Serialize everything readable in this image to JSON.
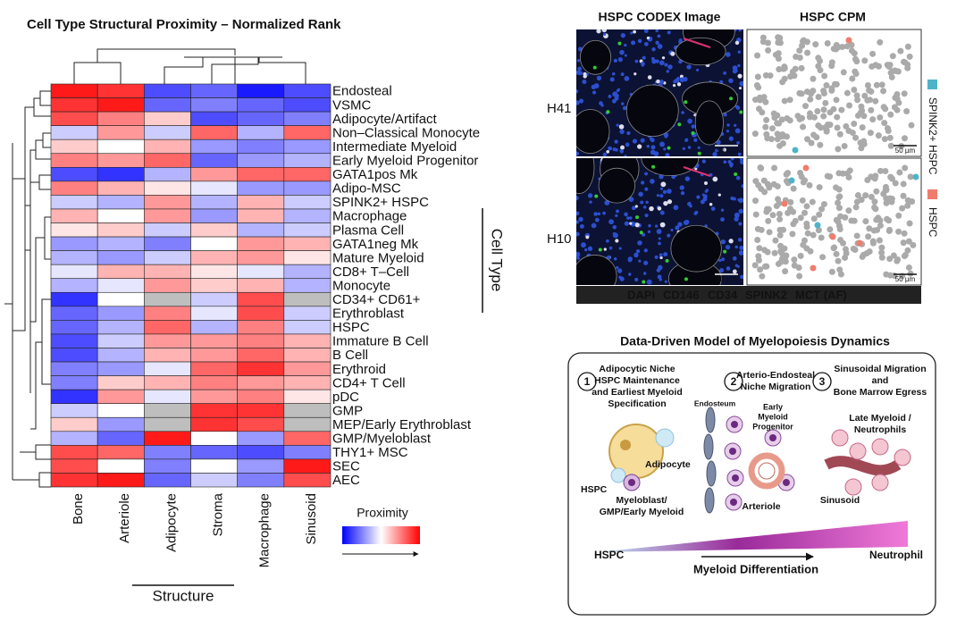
{
  "chart_data": {
    "type": "heatmap",
    "title": "Cell Type Structural Proximity – Normalized Rank",
    "columns": [
      "Bone",
      "Arteriole",
      "Adipocyte",
      "Stroma",
      "Macrophage",
      "Sinusoid"
    ],
    "rows": [
      "Endosteal",
      "VSMC",
      "Adipocyte/Artifact",
      "Non–Classical Monocyte",
      "Intermediate Myeloid",
      "Early Myeloid Progenitor",
      "GATA1pos Mk",
      "Adipo-MSC",
      "SPINK2+ HSPC",
      "Macrophage",
      "Plasma Cell",
      "GATA1neg Mk",
      "Mature Myeloid",
      "CD8+ T–Cell",
      "Monocyte",
      "CD34+ CD61+",
      "Erythroblast",
      "HSPC",
      "Immature B Cell",
      "B Cell",
      "Erythroid",
      "CD4+ T Cell",
      "pDC",
      "GMP",
      "MEP/Early Erythroblast",
      "GMP/Myeloblast",
      "THY1+ MSC",
      "SEC",
      "AEC"
    ],
    "values": [
      [
        0.9,
        0.8,
        -0.7,
        -0.6,
        -0.9,
        -0.7
      ],
      [
        0.8,
        0.9,
        -0.6,
        -0.5,
        -0.6,
        -0.7
      ],
      [
        0.7,
        0.5,
        0.2,
        -0.7,
        -0.6,
        -0.5
      ],
      [
        -0.2,
        0.4,
        -0.2,
        0.6,
        -0.3,
        0.6
      ],
      [
        0.2,
        0.0,
        0.3,
        -0.4,
        -0.5,
        -0.4
      ],
      [
        0.5,
        0.4,
        0.6,
        -0.6,
        -0.4,
        -0.3
      ],
      [
        -0.7,
        -0.8,
        -0.3,
        0.4,
        0.6,
        0.6
      ],
      [
        0.5,
        0.3,
        0.1,
        -0.1,
        -0.4,
        -0.4
      ],
      [
        -0.2,
        -0.3,
        0.4,
        -0.3,
        0.3,
        -0.2
      ],
      [
        0.3,
        0.0,
        0.4,
        -0.4,
        0.3,
        -0.3
      ],
      [
        0.1,
        0.2,
        -0.2,
        0.2,
        -0.3,
        -0.2
      ],
      [
        -0.4,
        -0.3,
        -0.5,
        0.0,
        0.4,
        0.3
      ],
      [
        -0.3,
        -0.4,
        -0.2,
        0.3,
        0.4,
        0.1
      ],
      [
        -0.1,
        0.3,
        0.3,
        0.1,
        -0.1,
        -0.3
      ],
      [
        -0.3,
        -0.1,
        0.4,
        0.2,
        0.3,
        -0.3
      ],
      [
        -0.8,
        0.0,
        null,
        -0.2,
        0.7,
        null
      ],
      [
        -0.6,
        -0.4,
        0.5,
        -0.1,
        0.7,
        -0.2
      ],
      [
        -0.6,
        -0.3,
        0.6,
        -0.3,
        0.5,
        -0.2
      ],
      [
        -0.7,
        -0.2,
        0.4,
        0.4,
        0.5,
        0.3
      ],
      [
        -0.7,
        -0.3,
        0.3,
        0.4,
        0.6,
        0.3
      ],
      [
        -0.5,
        -0.4,
        -0.1,
        0.6,
        0.8,
        0.4
      ],
      [
        -0.5,
        0.2,
        0.3,
        0.5,
        0.4,
        0.3
      ],
      [
        -0.8,
        0.4,
        -0.1,
        0.4,
        0.5,
        0.1
      ],
      [
        -0.2,
        0.0,
        null,
        0.8,
        0.8,
        null
      ],
      [
        0.2,
        -0.4,
        null,
        0.8,
        0.7,
        null
      ],
      [
        -0.3,
        -0.6,
        0.9,
        0.0,
        -0.4,
        0.6
      ],
      [
        0.7,
        0.6,
        -0.5,
        -0.6,
        -0.7,
        -0.5
      ],
      [
        0.7,
        0.0,
        -0.5,
        0.0,
        -0.4,
        0.9
      ],
      [
        0.8,
        0.9,
        -0.6,
        -0.2,
        -0.5,
        0.7
      ]
    ],
    "zlim": [
      -1,
      1
    ],
    "colors": [
      "#0000ff",
      "#ffffff",
      "#ff0000"
    ],
    "missing_color": "#bebebe",
    "x_label": "Structure",
    "y_label": "Cell Type",
    "legend_title": "Proximity"
  },
  "panels": {
    "codex": {
      "title_image": "HSPC CODEX Image",
      "title_cpm": "HSPC CPM",
      "samples": [
        "H41",
        "H10"
      ],
      "scale_bar": "50 µm",
      "channels": [
        {
          "name": "DAPI",
          "color": "#3b7dd8"
        },
        {
          "name": "CD146",
          "color": "#ffffff"
        },
        {
          "name": "CD34",
          "color": "#2eb84f"
        },
        {
          "name": "SPINK2",
          "color": "#e8303a"
        },
        {
          "name": "MCT (AF)",
          "color": "#f08a3c"
        }
      ],
      "legend": [
        {
          "name": "SPINK2+ HSPC",
          "color": "#4fb3c8"
        },
        {
          "name": "HSPC",
          "color": "#f07c6c"
        }
      ]
    },
    "model": {
      "title": "Data-Driven Model of Myelopoiesis Dynamics",
      "steps": [
        {
          "number": "1",
          "lines": [
            "Adipocytic Niche",
            "HSPC Maintenance",
            "and Earliest Myeloid",
            "Specification"
          ]
        },
        {
          "number": "2",
          "lines": [
            "Arterio-Endosteal",
            "Niche Migration"
          ]
        },
        {
          "number": "3",
          "lines": [
            "Sinusoidal Migration",
            "and",
            "Bone Marrow Egress"
          ]
        }
      ],
      "labels": {
        "endosteum": "Endosteum",
        "early_myeloid": [
          "Early",
          "Myeloid",
          "Progenitor"
        ],
        "late_myeloid": [
          "Late Myeloid /",
          "Neutrophils"
        ],
        "adipocyte": "Adipocyte",
        "hspc": "HSPC",
        "myeloblast": [
          "Myeloblast/",
          "GMP/Early Myeloid"
        ],
        "arteriole": "Arteriole",
        "sinusoid": "Sinusoid"
      },
      "axis": {
        "start": "HSPC",
        "end": "Neutrophil",
        "label": "Myeloid Differentiation"
      }
    }
  }
}
